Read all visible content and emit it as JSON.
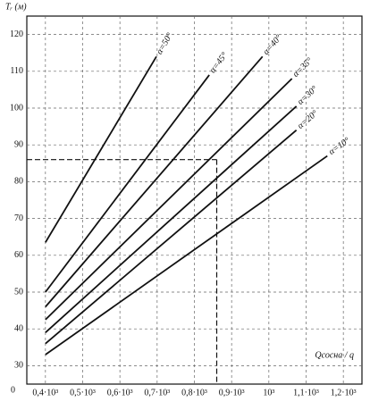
{
  "chart_data": {
    "type": "line",
    "y_label": "Tᵣ (м)",
    "x_label": "Qсосна / q",
    "origin_label": "0",
    "xlim": [
      350,
      1250
    ],
    "ylim": [
      25,
      125
    ],
    "xticks": [
      {
        "value": 400,
        "label": "0,4·10³"
      },
      {
        "value": 500,
        "label": "0,5·10³"
      },
      {
        "value": 600,
        "label": "0,6·10³"
      },
      {
        "value": 700,
        "label": "0,7·10³"
      },
      {
        "value": 800,
        "label": "0,8·10³"
      },
      {
        "value": 900,
        "label": "0,9·10³"
      },
      {
        "value": 1000,
        "label": "10³"
      },
      {
        "value": 1100,
        "label": "1,1·10³"
      },
      {
        "value": 1200,
        "label": "1,2·10³"
      }
    ],
    "yticks": [
      30,
      40,
      50,
      60,
      70,
      80,
      90,
      100,
      110,
      120
    ],
    "grid": true,
    "guide": {
      "x": 860,
      "y": 86
    },
    "series": [
      {
        "name": "α=50°",
        "color": "#111111",
        "x": [
          400,
          698
        ],
        "values": [
          63.5,
          114
        ]
      },
      {
        "name": "α=45°",
        "color": "#111111",
        "x": [
          400,
          840
        ],
        "values": [
          50,
          109
        ]
      },
      {
        "name": "α=40°",
        "color": "#111111",
        "x": [
          400,
          983
        ],
        "values": [
          46,
          114
        ]
      },
      {
        "name": "α=35°",
        "color": "#111111",
        "x": [
          400,
          1062
        ],
        "values": [
          42.5,
          108
        ]
      },
      {
        "name": "α=30°",
        "color": "#111111",
        "x": [
          400,
          1074
        ],
        "values": [
          39,
          100.5
        ]
      },
      {
        "name": "α=20°",
        "color": "#111111",
        "x": [
          400,
          1074
        ],
        "values": [
          36,
          94
        ]
      },
      {
        "name": "α=10°",
        "color": "#111111",
        "x": [
          400,
          1157
        ],
        "values": [
          33,
          87
        ]
      }
    ]
  }
}
